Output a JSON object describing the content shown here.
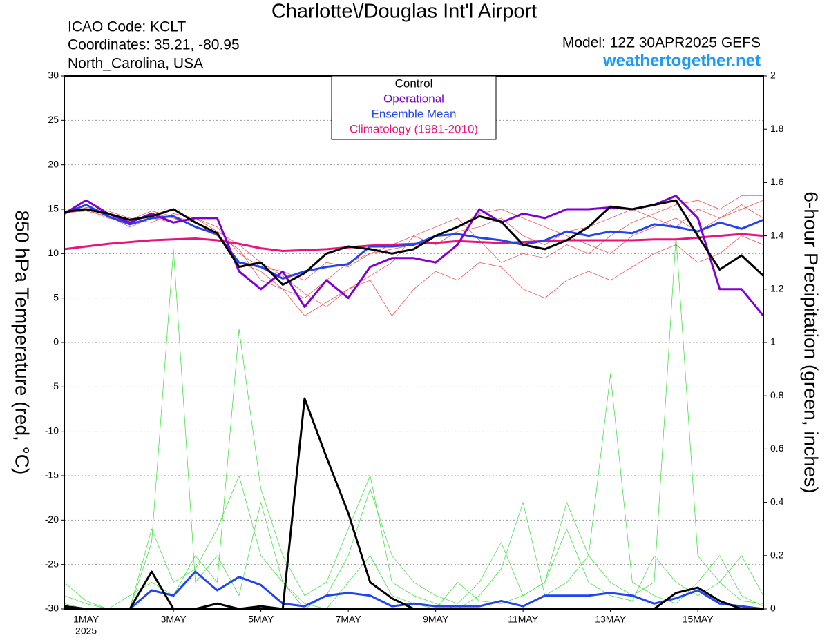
{
  "chart_data": {
    "type": "line",
    "title": "Charlotte\\/Douglas Int'l Airport",
    "info_left": [
      "ICAO Code: KCLT",
      "Coordinates: 35.21, -80.95",
      "North_Carolina, USA"
    ],
    "model": "Model: 12Z 30APR2025 GEFS",
    "site": "weathertogether.net",
    "site_color": "#1e9bf0",
    "ylabel": "850 hPa Temperature (red, °C)",
    "y2label": "6-hour Precipitation (green, inches)",
    "legend_position": "top-center",
    "grid": true,
    "xlim": [
      -0.5,
      15.5
    ],
    "xticks": [
      {
        "value": 0,
        "label": "1MAY"
      },
      {
        "value": 2,
        "label": "3MAY"
      },
      {
        "value": 4,
        "label": "5MAY"
      },
      {
        "value": 6,
        "label": "7MAY"
      },
      {
        "value": 8,
        "label": "9MAY"
      },
      {
        "value": 10,
        "label": "11MAY"
      },
      {
        "value": 12,
        "label": "13MAY"
      },
      {
        "value": 14,
        "label": "15MAY"
      }
    ],
    "xtick_sublabel": "2025",
    "ylim": [
      -30,
      30
    ],
    "yticks": [
      -30,
      -25,
      -20,
      -15,
      -10,
      -5,
      0,
      5,
      10,
      15,
      20,
      25,
      30
    ],
    "y2lim": [
      0,
      2
    ],
    "y2ticks": [
      0,
      0.2,
      0.4,
      0.6,
      0.8,
      1,
      1.2,
      1.4,
      1.6,
      1.8,
      2
    ],
    "x": [
      -0.5,
      0,
      0.5,
      1,
      1.5,
      2,
      2.5,
      3,
      3.5,
      4,
      4.5,
      5,
      5.5,
      6,
      6.5,
      7,
      7.5,
      8,
      8.5,
      9,
      9.5,
      10,
      10.5,
      11,
      11.5,
      12,
      12.5,
      13,
      13.5,
      14,
      14.5,
      15,
      15.5
    ],
    "series": [
      {
        "color": "#33dd33",
        "axis": "y2",
        "values": [
          0.1,
          0.03,
          0,
          0,
          0.25,
          1.35,
          0.1,
          0.2,
          0.05,
          0.4,
          0.1,
          0.02,
          0,
          0.1,
          0.2,
          0.05,
          0.02,
          0,
          0.1,
          0.03,
          0.02,
          0.05,
          0.1,
          0.3,
          0.1,
          0.05,
          0.03,
          0.2,
          0.1,
          0.05,
          0.1,
          0.03,
          0.02
        ]
      },
      {
        "color": "#33dd33",
        "axis": "y2",
        "values": [
          0.02,
          0,
          0,
          0.05,
          0.1,
          0.05,
          0.2,
          0.1,
          1.05,
          0.45,
          0.2,
          0.05,
          0.1,
          0.3,
          0.5,
          0.1,
          0.05,
          0.02,
          0,
          0.05,
          0.15,
          0.4,
          0.05,
          0.1,
          0.2,
          0.88,
          0.1,
          0.05,
          0.02,
          0.1,
          0.2,
          0.05,
          0.01
        ]
      },
      {
        "color": "#33dd33",
        "axis": "y2",
        "values": [
          0.05,
          0.02,
          0,
          0,
          0.3,
          0.1,
          0.15,
          0.3,
          0.5,
          0.2,
          0.1,
          0,
          0.05,
          0.2,
          0.45,
          0.2,
          0.1,
          0.05,
          0.02,
          0.1,
          0.25,
          0.05,
          0.1,
          0.4,
          0.2,
          0.1,
          0.05,
          0.1,
          1.4,
          0.2,
          0.1,
          0.2,
          0.05
        ]
      },
      {
        "color": "#f04040",
        "values": [
          14.8,
          15,
          14,
          13.6,
          14.5,
          14,
          13,
          12,
          9,
          8,
          6,
          5,
          7,
          9,
          10,
          11,
          12,
          11,
          12.5,
          13,
          14,
          12,
          11,
          12.5,
          13,
          14,
          15,
          14,
          13,
          15,
          14,
          15,
          16
        ]
      },
      {
        "color": "#f04040",
        "values": [
          14.5,
          15.2,
          14.8,
          14,
          13.5,
          14.5,
          14,
          13,
          10,
          8.5,
          8,
          7,
          9,
          8.5,
          10,
          10.5,
          11,
          12,
          13,
          14.5,
          15,
          14,
          13,
          12,
          11,
          10,
          12,
          13,
          14,
          12.5,
          14,
          15.5,
          14
        ]
      },
      {
        "color": "#f04040",
        "values": [
          14.6,
          14.8,
          14.2,
          13,
          14,
          13.5,
          14,
          12.5,
          11,
          9,
          7.5,
          5.5,
          4,
          6,
          7,
          3,
          6,
          8,
          7,
          9,
          8.5,
          6,
          5,
          7,
          8,
          7,
          8.5,
          10,
          11,
          9,
          10,
          12,
          11
        ]
      },
      {
        "color": "#f04040",
        "values": [
          14.7,
          15.4,
          14.5,
          13.8,
          14.8,
          14.2,
          13.5,
          12,
          10.5,
          7,
          6,
          3,
          4.5,
          6,
          7.5,
          9,
          12,
          13,
          14,
          11.5,
          9,
          10,
          9.5,
          11,
          10,
          12,
          13.5,
          14.5,
          15.5,
          16,
          15,
          16.5,
          16.5
        ]
      },
      {
        "color": "#2244ee",
        "axis": "y2",
        "values": [
          0.01,
          0,
          0,
          0,
          0.07,
          0.05,
          0.14,
          0.07,
          0.12,
          0.09,
          0.02,
          0.01,
          0.05,
          0.06,
          0.05,
          0.01,
          0.02,
          0.01,
          0.01,
          0.01,
          0.03,
          0.01,
          0.05,
          0.05,
          0.05,
          0.06,
          0.05,
          0.02,
          0.04,
          0.07,
          0.02,
          0.01,
          0
        ]
      },
      {
        "color": "#000000",
        "axis": "y2",
        "values": [
          0.01,
          0,
          0,
          0,
          0.14,
          0,
          0,
          0.02,
          0,
          0.01,
          0,
          0.79,
          0.57,
          0.36,
          0.1,
          0.04,
          0,
          0,
          0,
          0,
          0,
          0,
          0,
          0,
          0,
          0,
          0,
          0,
          0.06,
          0.08,
          0.03,
          0,
          0
        ]
      },
      {
        "name": "Climatology (1981-2010)",
        "color": "#e8147c",
        "values": [
          10.5,
          10.8,
          11.1,
          11.3,
          11.5,
          11.6,
          11.7,
          11.5,
          11.1,
          10.6,
          10.3,
          10.4,
          10.5,
          10.7,
          10.9,
          11.0,
          11.1,
          11.2,
          11.4,
          11.3,
          11.2,
          11.3,
          11.4,
          11.5,
          11.5,
          11.5,
          11.5,
          11.6,
          11.6,
          11.8,
          12.0,
          12.2,
          12.0
        ]
      },
      {
        "name": "Ensemble Mean",
        "color": "#2244ee",
        "values": [
          14.5,
          15.5,
          14.2,
          13.3,
          14,
          14.2,
          13,
          12.2,
          9,
          8.5,
          7.2,
          8,
          8.5,
          8.8,
          10.8,
          10.8,
          11,
          12,
          12.2,
          11.8,
          11.5,
          11,
          11.5,
          12.5,
          12,
          12.5,
          12.3,
          13.3,
          13,
          12.5,
          13.5,
          12.8,
          13.8
        ]
      },
      {
        "name": "Operational",
        "color": "#8000d0",
        "values": [
          14.5,
          16,
          14.5,
          13.5,
          14.5,
          13.5,
          14,
          14,
          8,
          6,
          8,
          4,
          7,
          5,
          8.5,
          9.5,
          9.5,
          9,
          11,
          15,
          13.5,
          14.5,
          14,
          15,
          15,
          15.2,
          15,
          15.5,
          16.5,
          14,
          6,
          6,
          3
        ]
      },
      {
        "name": "Control",
        "color": "#000000",
        "values": [
          14.7,
          15,
          14.5,
          13.8,
          14.2,
          15,
          13.5,
          12.3,
          8.5,
          9,
          6.5,
          7.8,
          10,
          10.8,
          10.5,
          10,
          10.5,
          12,
          13,
          14.2,
          13.6,
          11,
          10.5,
          11.5,
          13,
          15.3,
          15,
          15.5,
          16,
          12,
          8.2,
          9.8,
          7.5
        ]
      }
    ]
  }
}
